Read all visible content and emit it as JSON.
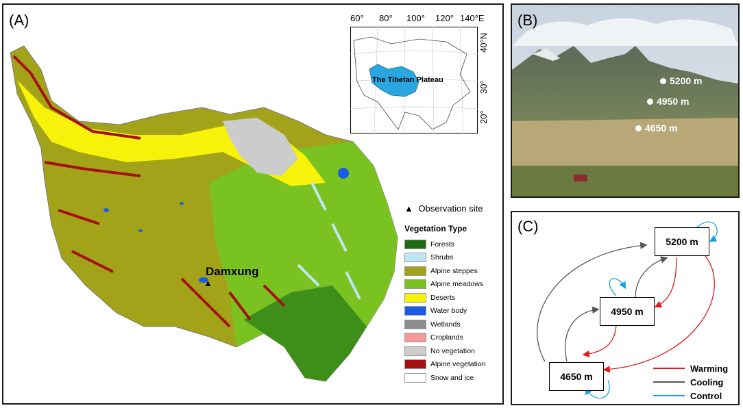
{
  "panel_a": {
    "label": "(A)",
    "site_name": "Damxung",
    "inset": {
      "lon_labels": [
        "60°",
        "80°",
        "100°",
        "120°",
        "140°E"
      ],
      "lat_labels": [
        "40°N",
        "30°",
        "20°"
      ],
      "plateau_label": "The Tibetan Plateau"
    },
    "legend": {
      "observation_marker": "▲",
      "observation_label": "Observation site",
      "title": "Vegetation Type",
      "items": [
        {
          "label": "Forests",
          "color": "#1f6b12"
        },
        {
          "label": "Shrubs",
          "color": "#bfe6f5"
        },
        {
          "label": "Alpine steppes",
          "color": "#a3a31a"
        },
        {
          "label": "Alpine meadows",
          "color": "#7ac21f"
        },
        {
          "label": "Deserts",
          "color": "#f7f20a"
        },
        {
          "label": "Water body",
          "color": "#1a5ce6"
        },
        {
          "label": "Wetlands",
          "color": "#8c8c8c"
        },
        {
          "label": "Croplands",
          "color": "#f59a9a"
        },
        {
          "label": "No vegetation",
          "color": "#cccccc"
        },
        {
          "label": "Alpine vegetation",
          "color": "#a50f0f"
        },
        {
          "label": "Snow and ice",
          "color": "#ffffff"
        }
      ]
    }
  },
  "panel_b": {
    "label": "(B)",
    "elevations": [
      "5200 m",
      "4950 m",
      "4650 m"
    ]
  },
  "panel_c": {
    "label": "(C)",
    "nodes": {
      "top": "5200 m",
      "middle": "4950 m",
      "bottom": "4650 m"
    },
    "legend": [
      {
        "label": "Warming",
        "color": "#e01a1a"
      },
      {
        "label": "Cooling",
        "color": "#555555"
      },
      {
        "label": "Control",
        "color": "#1aa0e0"
      }
    ]
  }
}
